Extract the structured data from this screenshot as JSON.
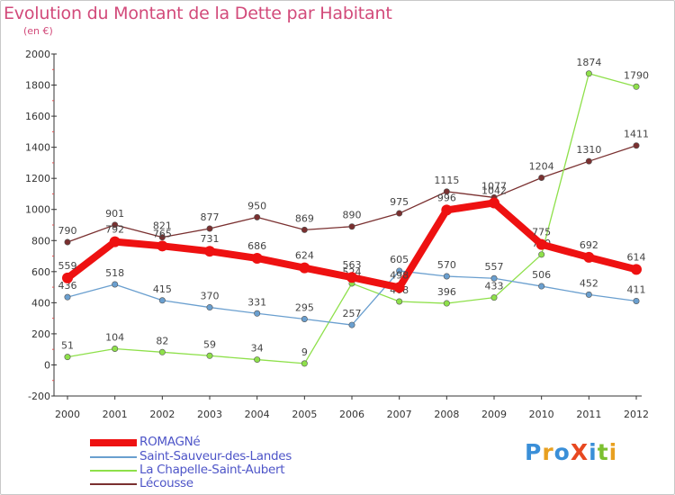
{
  "title": "Evolution du Montant de la Dette par Habitant",
  "subtitle": "(en €)",
  "logo": "ProXiti",
  "chart_data": {
    "type": "line",
    "x": [
      "2000",
      "2001",
      "2002",
      "2003",
      "2004",
      "2005",
      "2006",
      "2007",
      "2008",
      "2009",
      "2010",
      "2011",
      "2012"
    ],
    "ylim": [
      -200,
      2000
    ],
    "yticks": [
      "2000",
      "1800",
      "1600",
      "1400",
      "1200",
      "1000",
      "800",
      "600",
      "400",
      "200",
      "0",
      "-200"
    ],
    "grid": false,
    "legend": "bottom-left",
    "series": [
      {
        "name": "ROMAGNé",
        "color": "#ee1111",
        "values": [
          559,
          792,
          765,
          731,
          686,
          624,
          563,
          498,
          996,
          1042,
          775,
          692,
          614
        ],
        "labels": [
          "559",
          "792",
          "765",
          "731",
          "686",
          "624",
          "563",
          "498",
          "996",
          "1042",
          "775",
          "692",
          "614"
        ]
      },
      {
        "name": "Saint-Sauveur-des-Landes",
        "color": "#6a9fcf",
        "values": [
          436,
          518,
          415,
          370,
          331,
          295,
          257,
          605,
          570,
          557,
          506,
          452,
          411
        ],
        "labels": [
          "436",
          "518",
          "415",
          "370",
          "331",
          "295",
          "257",
          "605",
          "570",
          "557",
          "506",
          "452",
          "411"
        ]
      },
      {
        "name": "La Chapelle-Saint-Aubert",
        "color": "#8ee04a",
        "values": [
          51,
          104,
          82,
          59,
          34,
          9,
          524,
          408,
          396,
          433,
          710,
          1874,
          1790
        ],
        "labels": [
          "51",
          "104",
          "82",
          "59",
          "34",
          "9",
          "524",
          "408",
          "396",
          "433",
          "710",
          "1874",
          "1790"
        ]
      },
      {
        "name": "Lécousse",
        "color": "#7a3030",
        "values": [
          790,
          901,
          821,
          877,
          950,
          869,
          890,
          975,
          1115,
          1077,
          1204,
          1310,
          1411
        ],
        "labels": [
          "790",
          "901",
          "821",
          "877",
          "950",
          "869",
          "890",
          "975",
          "1115",
          "1077",
          "1204",
          "1310",
          "1411"
        ]
      }
    ]
  }
}
